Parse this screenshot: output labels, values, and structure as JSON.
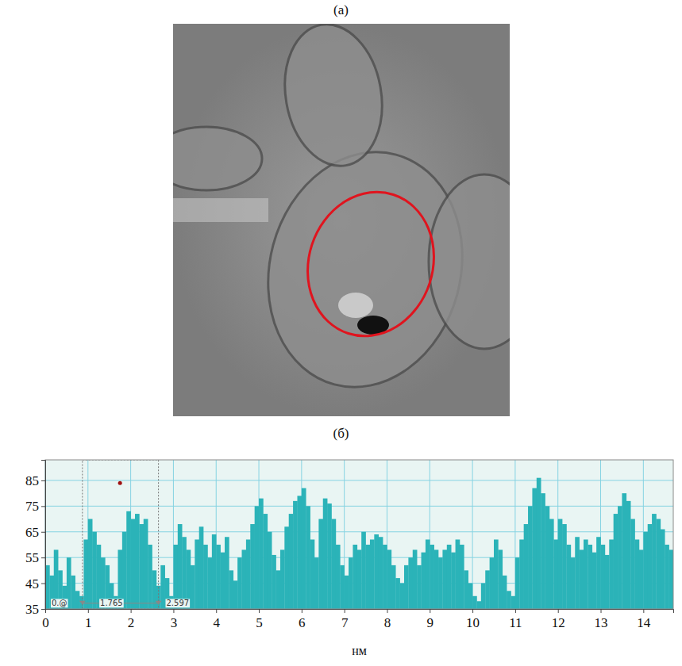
{
  "image_panel": {
    "label": "(а)"
  },
  "chart_data": {
    "type": "bar",
    "panel_label": "(б)",
    "x_label": "нм",
    "color": "#2bb3b8",
    "grid": true,
    "xlim": [
      0,
      14.7
    ],
    "xticks": [
      0,
      1,
      2,
      3,
      4,
      5,
      6,
      7,
      8,
      9,
      10,
      11,
      12,
      13,
      14
    ],
    "ylim": [
      35,
      93
    ],
    "yticks": [
      35,
      45,
      55,
      65,
      75,
      85
    ],
    "x": [
      0,
      0.1,
      0.2,
      0.3,
      0.4,
      0.5,
      0.6,
      0.7,
      0.8,
      0.9,
      1,
      1.1,
      1.2,
      1.3,
      1.4,
      1.5,
      1.6,
      1.7,
      1.8,
      1.9,
      2,
      2.1,
      2.2,
      2.3,
      2.4,
      2.5,
      2.6,
      2.7,
      2.8,
      2.9,
      3,
      3.1,
      3.2,
      3.3,
      3.4,
      3.5,
      3.6,
      3.7,
      3.8,
      3.9,
      4,
      4.1,
      4.2,
      4.3,
      4.4,
      4.5,
      4.6,
      4.7,
      4.8,
      4.9,
      5,
      5.1,
      5.2,
      5.3,
      5.4,
      5.5,
      5.6,
      5.7,
      5.8,
      5.9,
      6,
      6.1,
      6.2,
      6.3,
      6.4,
      6.5,
      6.6,
      6.7,
      6.8,
      6.9,
      7,
      7.1,
      7.2,
      7.3,
      7.4,
      7.5,
      7.6,
      7.7,
      7.8,
      7.9,
      8,
      8.1,
      8.2,
      8.3,
      8.4,
      8.5,
      8.6,
      8.7,
      8.8,
      8.9,
      9,
      9.1,
      9.2,
      9.3,
      9.4,
      9.5,
      9.6,
      9.7,
      9.8,
      9.9,
      10,
      10.1,
      10.2,
      10.3,
      10.4,
      10.5,
      10.6,
      10.7,
      10.8,
      10.9,
      11,
      11.1,
      11.2,
      11.3,
      11.4,
      11.5,
      11.6,
      11.7,
      11.8,
      11.9,
      12,
      12.1,
      12.2,
      12.3,
      12.4,
      12.5,
      12.6,
      12.7,
      12.8,
      12.9,
      13,
      13.1,
      13.2,
      13.3,
      13.4,
      13.5,
      13.6,
      13.7,
      13.8,
      13.9,
      14,
      14.1,
      14.2,
      14.3,
      14.4,
      14.5,
      14.6
    ],
    "values": [
      52,
      48,
      58,
      50,
      44,
      55,
      48,
      42,
      40,
      62,
      70,
      65,
      60,
      55,
      52,
      45,
      40,
      58,
      65,
      73,
      70,
      72,
      68,
      70,
      60,
      50,
      44,
      52,
      47,
      40,
      60,
      68,
      63,
      58,
      52,
      62,
      67,
      60,
      55,
      64,
      60,
      57,
      63,
      50,
      46,
      55,
      58,
      62,
      68,
      75,
      78,
      72,
      65,
      56,
      50,
      58,
      67,
      72,
      77,
      79,
      82,
      75,
      62,
      55,
      70,
      78,
      76,
      70,
      60,
      52,
      48,
      55,
      60,
      58,
      65,
      60,
      62,
      64,
      63,
      60,
      58,
      52,
      47,
      45,
      52,
      55,
      58,
      52,
      57,
      62,
      60,
      58,
      55,
      58,
      60,
      57,
      62,
      60,
      50,
      45,
      40,
      38,
      45,
      50,
      55,
      62,
      58,
      48,
      42,
      40,
      55,
      62,
      68,
      75,
      82,
      86,
      80,
      75,
      70,
      62,
      70,
      68,
      60,
      55,
      63,
      58,
      62,
      60,
      57,
      63,
      60,
      56,
      62,
      72,
      75,
      80,
      77,
      70,
      62,
      58,
      65,
      68,
      72,
      70,
      66,
      60,
      58
    ],
    "annotations": [
      {
        "text": "0.@",
        "x": 0.33,
        "y": 37.2
      },
      {
        "text": "1.765",
        "x": 1.55,
        "y": 37.2
      },
      {
        "text": "2.597",
        "x": 3.1,
        "y": 37.2
      }
    ],
    "selection": {
      "x": [
        0.87,
        2.65
      ]
    },
    "point": {
      "x": 1.75,
      "y": 84
    }
  }
}
